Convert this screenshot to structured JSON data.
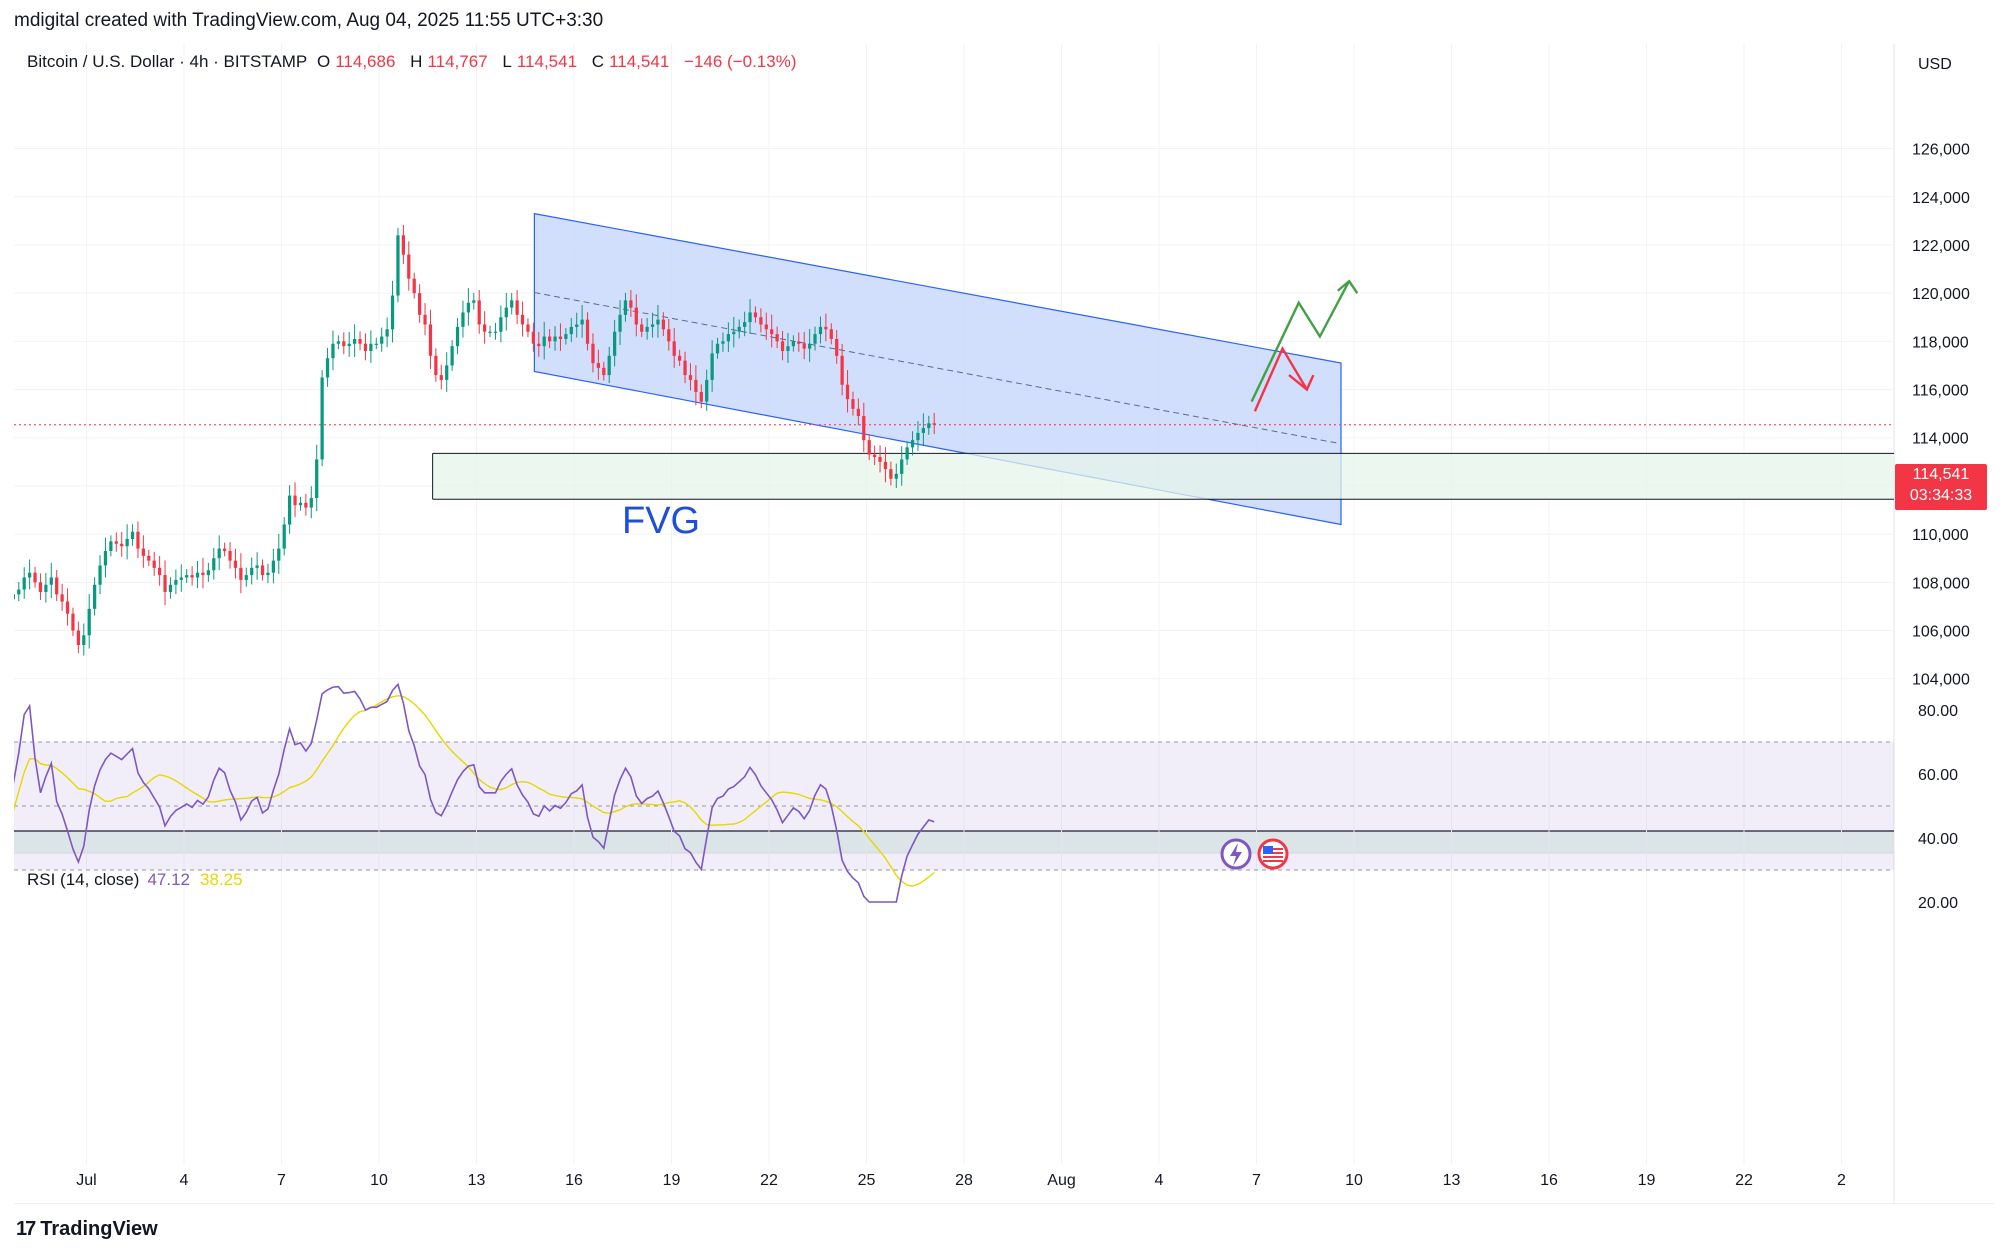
{
  "header": {
    "attribution": "mdigital created with TradingView.com, Aug 04, 2025 11:55 UTC+3:30"
  },
  "legend": {
    "symbol": "Bitcoin / U.S. Dollar · 4h · BITSTAMP",
    "open_key": "O",
    "open": "114,686",
    "high_key": "H",
    "high": "114,767",
    "low_key": "L",
    "low": "114,541",
    "close_key": "C",
    "close": "114,541",
    "change": "−146 (−0.13%)"
  },
  "rsi_legend": {
    "label": "RSI (14, close)",
    "value": "47.12",
    "ma_value": "38.25"
  },
  "price_axis": {
    "currency": "USD",
    "last_price": "114,541",
    "countdown": "03:34:33"
  },
  "annotations": {
    "fvg_label": "FVG"
  },
  "footer": {
    "brand": "TradingView"
  },
  "colors": {
    "up": "#089981",
    "down": "#f23645",
    "channel_fill": "#c9d8fb",
    "channel_line": "#2962ff",
    "fvg_fill": "#e6f4ea",
    "rsi_line": "#7e57c2",
    "rsi_ma": "#e6d800",
    "green_arrow": "#43a047",
    "red_arrow": "#f23645"
  },
  "icons": [
    "lightning-event-icon",
    "us-flag-event-icon",
    "tradingview-logo-icon"
  ],
  "chart_data": [
    {
      "type": "candlestick",
      "title": "Bitcoin / U.S. Dollar · 4h · BITSTAMP",
      "x_tick_labels": [
        "Jul",
        "4",
        "7",
        "10",
        "13",
        "16",
        "19",
        "22",
        "25",
        "28",
        "Aug",
        "4",
        "7",
        "10",
        "13",
        "16",
        "19",
        "22",
        "2"
      ],
      "y_tick_labels": [
        "104,000",
        "106,000",
        "108,000",
        "110,000",
        "112,000",
        "114,000",
        "116,000",
        "118,000",
        "120,000",
        "122,000",
        "124,000",
        "126,000"
      ],
      "ylim": [
        103200,
        127600
      ],
      "bars_per_day": 6,
      "start_day": -2.75,
      "closes": [
        107400,
        107600,
        107300,
        107500,
        107700,
        108200,
        108400,
        108000,
        107600,
        107900,
        108200,
        107500,
        107200,
        106700,
        106000,
        105400,
        105800,
        106900,
        107900,
        108700,
        109300,
        109700,
        109600,
        109500,
        109800,
        110100,
        109400,
        109100,
        108900,
        108600,
        108300,
        107600,
        107900,
        108100,
        108200,
        108300,
        108200,
        108400,
        108300,
        108500,
        109000,
        109400,
        109300,
        108900,
        108600,
        108100,
        108300,
        108600,
        108700,
        108300,
        108400,
        108900,
        109400,
        110400,
        111600,
        111200,
        111300,
        111100,
        111500,
        113100,
        116500,
        117300,
        117900,
        118000,
        117800,
        117900,
        118100,
        117900,
        117600,
        117900,
        117900,
        118200,
        118500,
        119900,
        122400,
        121600,
        120600,
        120000,
        119100,
        118700,
        117400,
        116600,
        116400,
        117000,
        117800,
        118600,
        119200,
        119600,
        119700,
        118700,
        118400,
        118400,
        118400,
        119000,
        119400,
        119700,
        119100,
        118700,
        118400,
        117900,
        117800,
        118200,
        118000,
        118200,
        118100,
        118300,
        118600,
        118700,
        118900,
        117900,
        117100,
        116900,
        116600,
        117400,
        118400,
        119100,
        119700,
        119400,
        118700,
        118400,
        118600,
        118700,
        118900,
        118500,
        118000,
        117400,
        117200,
        116600,
        116400,
        115900,
        115500,
        116400,
        117500,
        117900,
        118000,
        118300,
        118400,
        118600,
        118800,
        119200,
        119000,
        118700,
        118500,
        118300,
        118000,
        117600,
        117800,
        118000,
        117900,
        117700,
        117900,
        118300,
        118600,
        118500,
        118100,
        117400,
        116200,
        115600,
        115200,
        114900,
        113900,
        113300,
        113200,
        113000,
        112700,
        112300,
        112500,
        113100,
        113600,
        113900,
        114200,
        114400,
        114600,
        114541
      ],
      "last_close": 114541
    },
    {
      "type": "line",
      "title": "RSI (14, close)",
      "y_tick_labels": [
        "20.00",
        "40.00",
        "60.00",
        "80.00"
      ],
      "ylim": [
        20,
        88
      ],
      "reference_levels": [
        70,
        50,
        30
      ],
      "last_value": 47.12,
      "last_ma_value": 38.25
    }
  ]
}
